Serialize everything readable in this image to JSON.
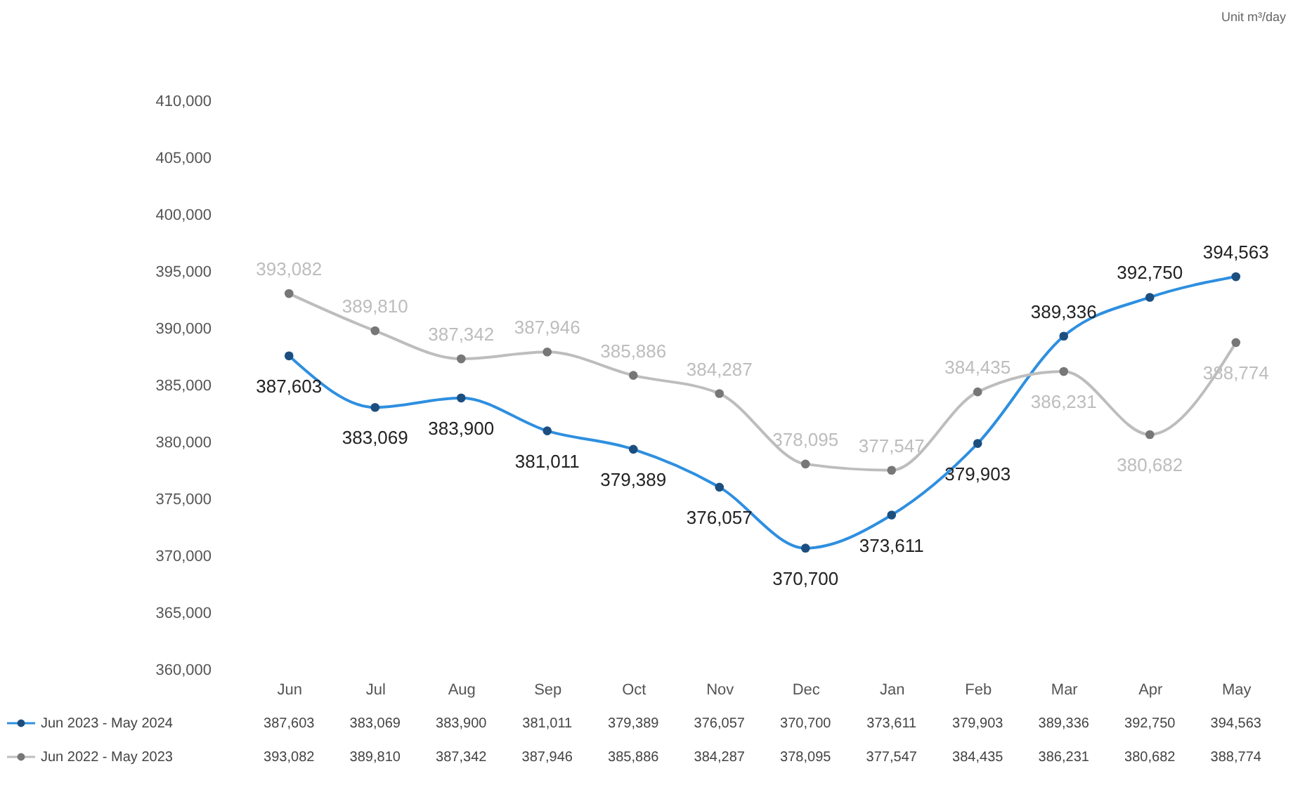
{
  "chart_data": {
    "type": "line",
    "annotations": [
      "Unit m³/day"
    ],
    "categories": [
      "Jun",
      "Jul",
      "Aug",
      "Sep",
      "Oct",
      "Nov",
      "Dec",
      "Jan",
      "Feb",
      "Mar",
      "Apr",
      "May"
    ],
    "series": [
      {
        "name": "Jun 2023 - May 2024",
        "color": "#2e8fe0",
        "values": [
          387603,
          383069,
          383900,
          381011,
          379389,
          376057,
          370700,
          373611,
          379903,
          389336,
          392750,
          394563
        ],
        "value_labels": [
          "387,603",
          "383,069",
          "383,900",
          "381,011",
          "379,389",
          "376,057",
          "370,700",
          "373,611",
          "379,903",
          "389,336",
          "392,750",
          "394,563"
        ]
      },
      {
        "name": "Jun 2022 - May 2023",
        "color": "#bdbdbd",
        "values": [
          393082,
          389810,
          387342,
          387946,
          385886,
          384287,
          378095,
          377547,
          384435,
          386231,
          380682,
          388774
        ],
        "value_labels": [
          "393,082",
          "389,810",
          "387,342",
          "387,946",
          "385,886",
          "384,287",
          "378,095",
          "377,547",
          "384,435",
          "386,231",
          "380,682",
          "388,774"
        ]
      }
    ],
    "ylim": [
      360000,
      410000
    ],
    "yticks": [
      {
        "value": 360000,
        "label": "360,000"
      },
      {
        "value": 365000,
        "label": "365,000"
      },
      {
        "value": 370000,
        "label": "370,000"
      },
      {
        "value": 375000,
        "label": "375,000"
      },
      {
        "value": 380000,
        "label": "380,000"
      },
      {
        "value": 385000,
        "label": "385,000"
      },
      {
        "value": 390000,
        "label": "390,000"
      },
      {
        "value": 395000,
        "label": "395,000"
      },
      {
        "value": 400000,
        "label": "400,000"
      },
      {
        "value": 405000,
        "label": "405,000"
      },
      {
        "value": 410000,
        "label": "410,000"
      }
    ],
    "legend": "bottom",
    "marker": "circle",
    "line_style": "solid"
  }
}
